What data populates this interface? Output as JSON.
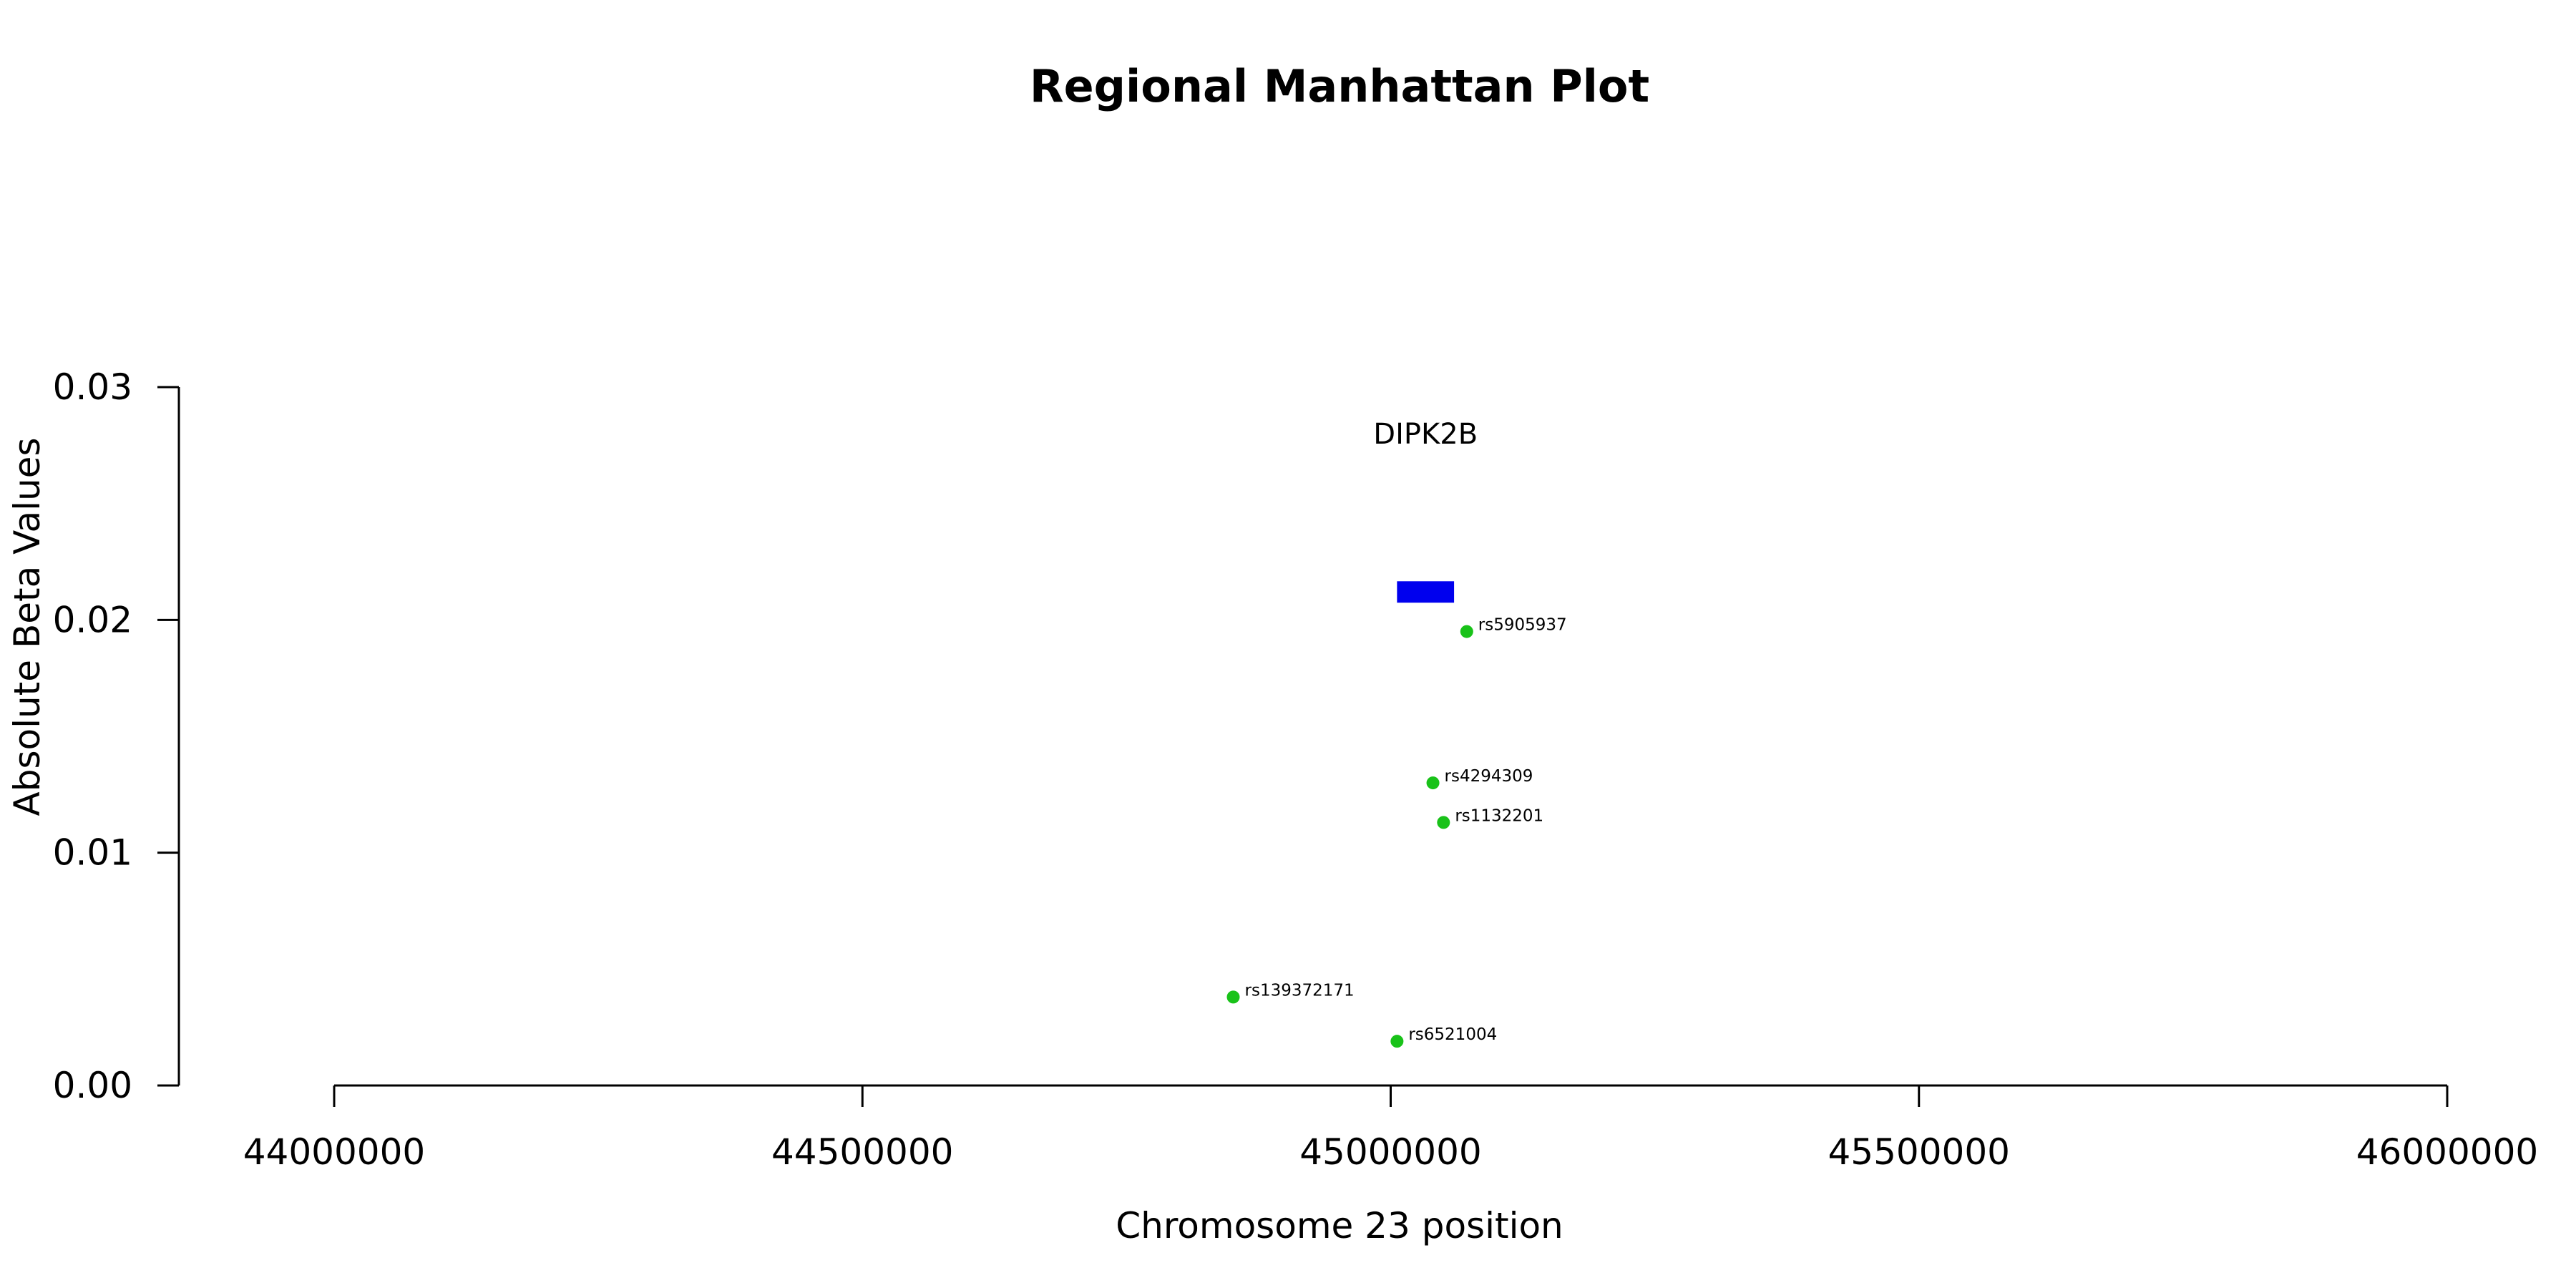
{
  "chart_data": {
    "type": "scatter",
    "title": "Regional Manhattan Plot",
    "xlabel": "Chromosome 23 position",
    "ylabel": "Absolute Beta Values",
    "xlim": [
      44000000,
      46000000
    ],
    "ylim": [
      0,
      0.03
    ],
    "x_ticks": [
      "44000000",
      "44500000",
      "45000000",
      "45500000",
      "46000000"
    ],
    "y_ticks": [
      "0.00",
      "0.01",
      "0.02",
      "0.03"
    ],
    "x_tick_values": [
      44000000,
      44500000,
      45000000,
      45500000,
      46000000
    ],
    "y_tick_values": [
      0,
      0.01,
      0.02,
      0.03
    ],
    "point_color": "#19c219",
    "gene_color": "#0000ee",
    "points": [
      {
        "x": 45072000,
        "y": 0.0195,
        "label": "rs5905937"
      },
      {
        "x": 45040000,
        "y": 0.013,
        "label": "rs4294309"
      },
      {
        "x": 45050000,
        "y": 0.0113,
        "label": "rs1132201"
      },
      {
        "x": 44851000,
        "y": 0.0038,
        "label": "rs139372171"
      },
      {
        "x": 45006000,
        "y": 0.0019,
        "label": "rs6521004"
      }
    ],
    "genes": [
      {
        "name": "DIPK2B",
        "start": 45006000,
        "end": 45060000,
        "y": 0.0212
      }
    ]
  }
}
